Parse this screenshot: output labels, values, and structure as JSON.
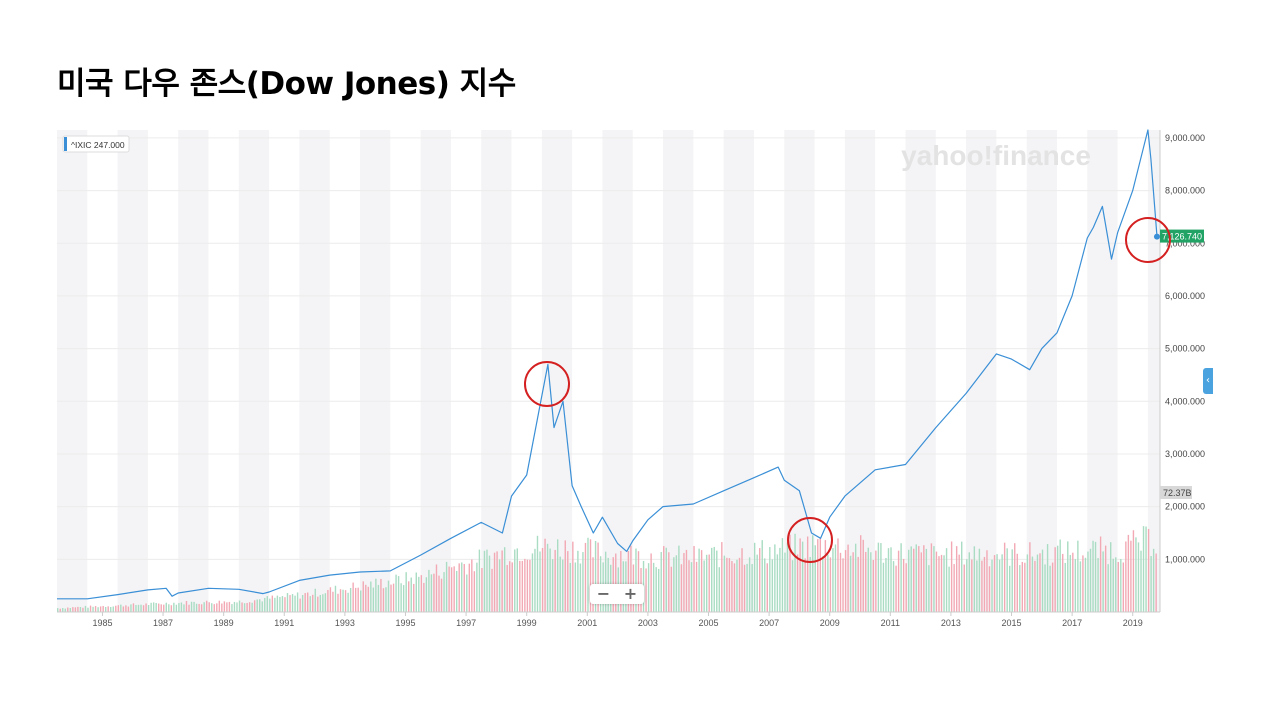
{
  "slide": {
    "title": "미국 다우 존스(Dow Jones) 지수"
  },
  "widget": {
    "legend_label": "^IXIC 247.000",
    "watermark": "yahoo!finance",
    "last_price_label": "7,126.740",
    "volume_label": "72.37B",
    "zoom_out_label": "−",
    "zoom_in_label": "+",
    "collapse_label": "‹"
  },
  "colors": {
    "line": "#3a8fd6",
    "band": "#f4f4f6",
    "volume_up": "#a9dcc3",
    "volume_down": "#f2a9b4",
    "price_badge": "#21a366",
    "highlight_circle": "#d42020"
  },
  "chart_data": {
    "type": "line",
    "title": "",
    "xlabel": "",
    "ylabel": "",
    "xlim": [
      1984,
      2020.4
    ],
    "ylim": [
      0,
      9150
    ],
    "x_ticks": [
      "1985",
      "1987",
      "1989",
      "1991",
      "1993",
      "1995",
      "1997",
      "1999",
      "2001",
      "2003",
      "2005",
      "2007",
      "2009",
      "2011",
      "2013",
      "2015",
      "2017",
      "2019"
    ],
    "y_ticks": [
      "1,000.000",
      "2,000.000",
      "3,000.000",
      "4,000.000",
      "5,000.000",
      "6,000.000",
      "7,000.000",
      "8,000.000",
      "9,000.000"
    ],
    "grid": true,
    "series": [
      {
        "x": [
          1984.0,
          1985.0,
          1986.0,
          1987.0,
          1987.6,
          1987.8,
          1988.0,
          1989.0,
          1990.0,
          1990.8,
          1991.0,
          1992.0,
          1993.0,
          1994.0,
          1995.0,
          1996.0,
          1997.0,
          1998.0,
          1998.7,
          1999.0,
          1999.5,
          2000.0,
          2000.2,
          2000.4,
          2000.7,
          2001.0,
          2001.3,
          2001.7,
          2002.0,
          2002.5,
          2002.8,
          2003.0,
          2003.5,
          2004.0,
          2005.0,
          2006.0,
          2007.0,
          2007.8,
          2008.0,
          2008.5,
          2008.9,
          2009.2,
          2009.5,
          2010.0,
          2011.0,
          2012.0,
          2013.0,
          2014.0,
          2015.0,
          2015.5,
          2016.1,
          2016.5,
          2017.0,
          2017.5,
          2018.0,
          2018.2,
          2018.5,
          2018.8,
          2019.0,
          2019.5,
          2020.0,
          2020.1,
          2020.3
        ],
        "values": [
          250,
          250,
          330,
          420,
          450,
          300,
          360,
          450,
          430,
          350,
          380,
          600,
          700,
          760,
          780,
          1080,
          1400,
          1700,
          1500,
          2200,
          2600,
          4100,
          4700,
          3500,
          4000,
          2400,
          2000,
          1500,
          1800,
          1300,
          1150,
          1350,
          1750,
          2000,
          2050,
          2300,
          2550,
          2750,
          2500,
          2300,
          1500,
          1400,
          1800,
          2200,
          2700,
          2800,
          3500,
          4150,
          4900,
          4800,
          4600,
          5000,
          5300,
          6000,
          7100,
          7300,
          7700,
          6700,
          7200,
          8000,
          9150,
          8600,
          7126.74
        ]
      }
    ],
    "volume": {
      "x": [
        1984,
        1986,
        1988,
        1990,
        1992,
        1994,
        1996,
        1997,
        1998,
        1999,
        2000,
        2001,
        2002,
        2003,
        2004,
        2005,
        2006,
        2007,
        2008,
        2009,
        2010,
        2011,
        2012,
        2013,
        2014,
        2015,
        2016,
        2017,
        2018,
        2019,
        2020
      ],
      "values": [
        3,
        5,
        7,
        8,
        13,
        20,
        27,
        35,
        40,
        48,
        50,
        49,
        45,
        44,
        42,
        42,
        44,
        46,
        48,
        52,
        50,
        47,
        45,
        44,
        45,
        45,
        44,
        46,
        47,
        48,
        55
      ]
    },
    "last_value": 7126.74
  }
}
